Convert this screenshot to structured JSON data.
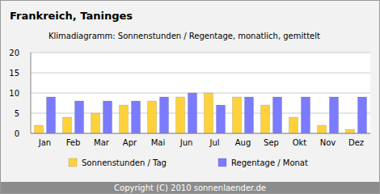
{
  "chart_data": {
    "type": "bar",
    "title": "Frankreich, Taninges",
    "subtitle": "Klimadiagramm: Sonnenstunden / Regentage, monatlich, gemittelt",
    "categories": [
      "Jan",
      "Feb",
      "Mar",
      "Apr",
      "Mai",
      "Jun",
      "Jul",
      "Aug",
      "Sep",
      "Okt",
      "Nov",
      "Dez"
    ],
    "series": [
      {
        "name": "Sonnenstunden / Tag",
        "color": "#ffd23c",
        "values": [
          2,
          4,
          5,
          7,
          8,
          9,
          10,
          9,
          7,
          4,
          2,
          1
        ]
      },
      {
        "name": "Regentage / Monat",
        "color": "#7b7bff",
        "values": [
          9,
          8,
          8,
          8,
          9,
          10,
          7,
          9,
          9,
          9,
          9,
          9
        ]
      }
    ],
    "ylim": [
      0,
      20
    ],
    "yticks": [
      0,
      5,
      10,
      15,
      20
    ],
    "grid": true,
    "legend": "bottom",
    "footer": "Copyright (C) 2010 sonnenlaender.de"
  }
}
